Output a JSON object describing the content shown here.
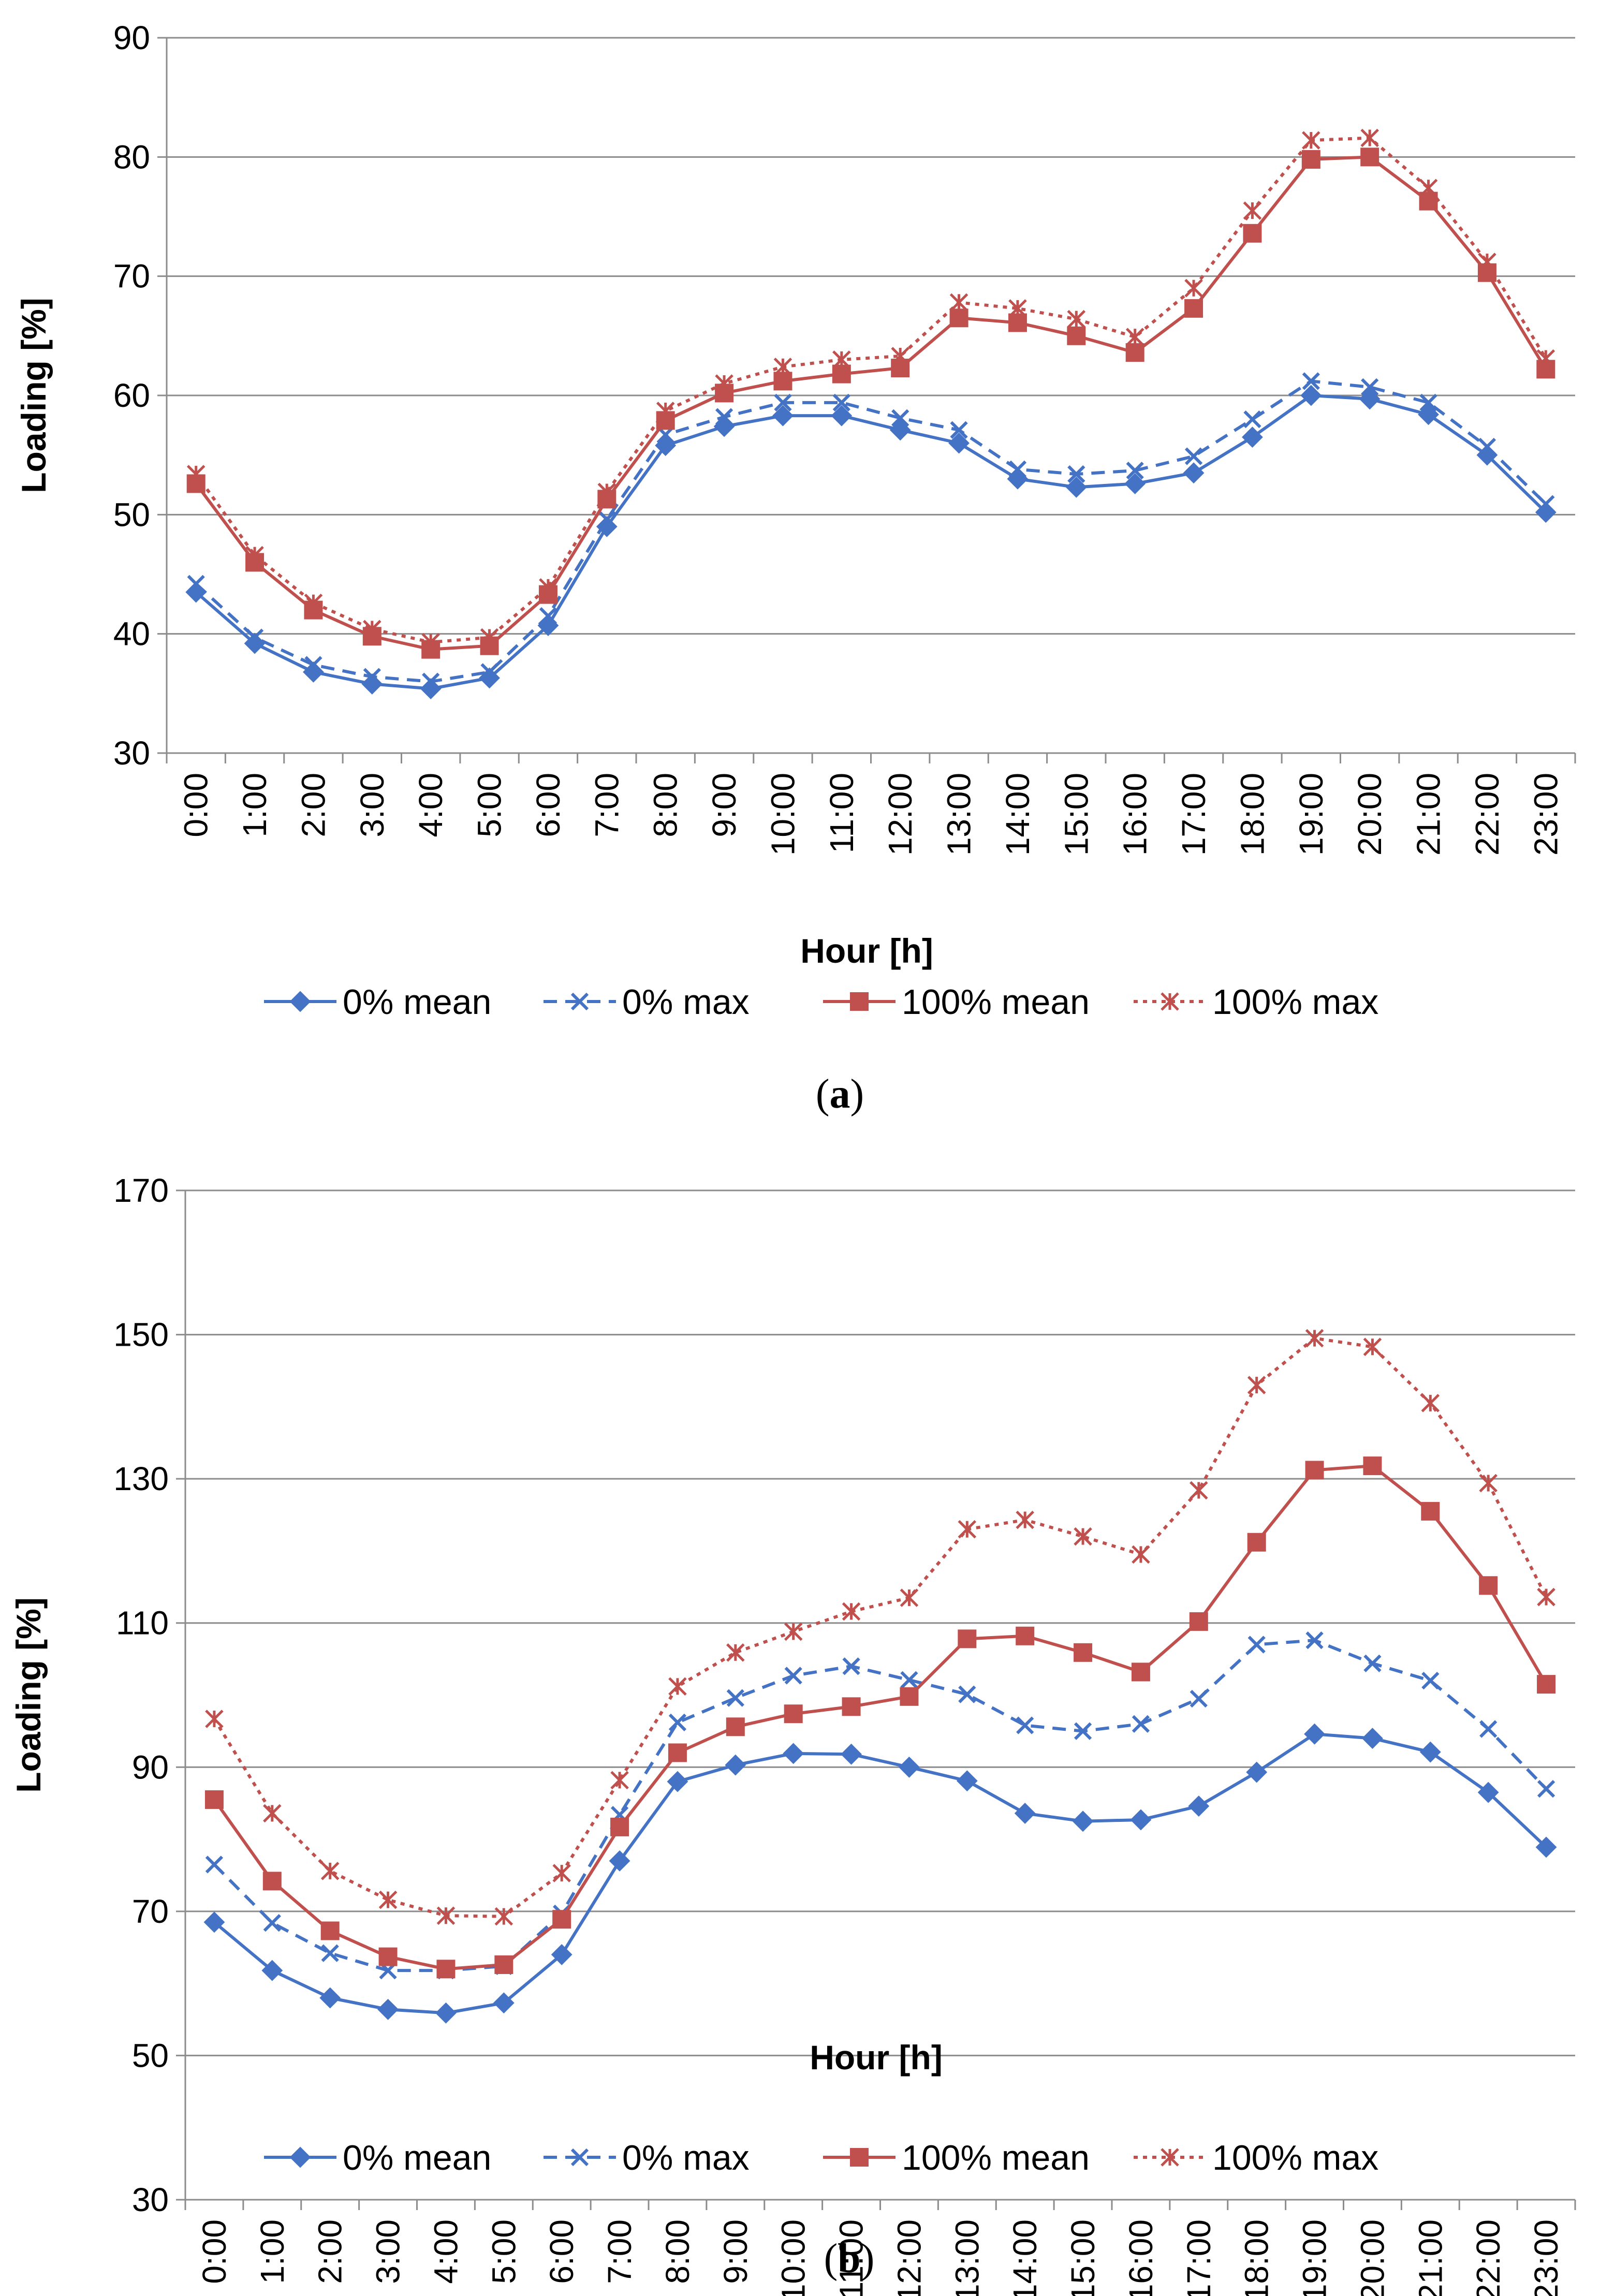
{
  "chart_data": [
    {
      "type": "line",
      "panel": "a",
      "caption_open": "(",
      "caption_letter": "a",
      "caption_close": ")",
      "xlabel": "Hour [h]",
      "ylabel": "Loading [%]",
      "ylim": [
        30,
        90
      ],
      "yticks": [
        30,
        40,
        50,
        60,
        70,
        80,
        90
      ],
      "grid": true,
      "legend": "bottom",
      "categories": [
        "0:00",
        "1:00",
        "2:00",
        "3:00",
        "4:00",
        "5:00",
        "6:00",
        "7:00",
        "8:00",
        "9:00",
        "10:00",
        "11:00",
        "12:00",
        "13:00",
        "14:00",
        "15:00",
        "16:00",
        "17:00",
        "18:00",
        "19:00",
        "20:00",
        "21:00",
        "22:00",
        "23:00"
      ],
      "series": [
        {
          "name": "0% mean",
          "color": "#4472C4",
          "marker": "diamond",
          "dash": "solid",
          "values": [
            43.5,
            39.2,
            36.8,
            35.8,
            35.4,
            36.3,
            40.7,
            49.0,
            55.8,
            57.4,
            58.3,
            58.3,
            57.1,
            56.0,
            53.0,
            52.3,
            52.6,
            53.5,
            56.5,
            60.0,
            59.7,
            58.4,
            55.0,
            50.2
          ]
        },
        {
          "name": "0% max",
          "color": "#4472C4",
          "marker": "x",
          "dash": "dashed",
          "values": [
            44.2,
            39.7,
            37.4,
            36.4,
            36.0,
            36.8,
            41.5,
            49.6,
            56.7,
            58.2,
            59.4,
            59.4,
            58.1,
            57.1,
            53.8,
            53.4,
            53.7,
            54.9,
            58.0,
            61.2,
            60.7,
            59.4,
            55.7,
            50.9
          ]
        },
        {
          "name": "100% mean",
          "color": "#C0504D",
          "marker": "square",
          "dash": "solid",
          "values": [
            52.6,
            46.0,
            42.0,
            39.8,
            38.7,
            39.0,
            43.3,
            51.3,
            57.9,
            60.2,
            61.2,
            61.8,
            62.3,
            66.5,
            66.1,
            65.0,
            63.6,
            67.3,
            73.6,
            79.8,
            80.0,
            76.3,
            70.3,
            62.2
          ]
        },
        {
          "name": "100% max",
          "color": "#C0504D",
          "marker": "asterisk",
          "dash": "dotted",
          "values": [
            53.4,
            46.6,
            42.6,
            40.4,
            39.3,
            39.7,
            43.9,
            51.9,
            58.7,
            61.0,
            62.4,
            63.0,
            63.3,
            67.8,
            67.3,
            66.4,
            64.9,
            69.0,
            75.5,
            81.4,
            81.6,
            77.4,
            71.2,
            63.1
          ]
        }
      ]
    },
    {
      "type": "line",
      "panel": "b",
      "caption_open": "(",
      "caption_letter": "b",
      "caption_close": ")",
      "xlabel": "Hour [h]",
      "ylabel": "Loading [%]",
      "ylim": [
        30,
        170
      ],
      "yticks": [
        30,
        50,
        70,
        90,
        110,
        130,
        150,
        170
      ],
      "grid": true,
      "legend": "bottom",
      "categories": [
        "0:00",
        "1:00",
        "2:00",
        "3:00",
        "4:00",
        "5:00",
        "6:00",
        "7:00",
        "8:00",
        "9:00",
        "10:00",
        "11:00",
        "12:00",
        "13:00",
        "14:00",
        "15:00",
        "16:00",
        "17:00",
        "18:00",
        "19:00",
        "20:00",
        "21:00",
        "22:00",
        "23:00"
      ],
      "series": [
        {
          "name": "0% mean",
          "color": "#4472C4",
          "marker": "diamond",
          "dash": "solid",
          "values": [
            68.5,
            61.8,
            58.0,
            56.4,
            55.9,
            57.3,
            64.0,
            77.0,
            88.0,
            90.3,
            91.9,
            91.8,
            90.0,
            88.1,
            83.6,
            82.5,
            82.7,
            84.6,
            89.3,
            94.6,
            94.0,
            92.1,
            86.5,
            78.9
          ]
        },
        {
          "name": "0% max",
          "color": "#4472C4",
          "marker": "x",
          "dash": "dashed",
          "values": [
            76.5,
            68.4,
            64.2,
            61.8,
            61.8,
            62.4,
            69.7,
            83.4,
            96.2,
            99.6,
            102.7,
            104.0,
            102.1,
            100.1,
            95.8,
            95.0,
            96.0,
            99.5,
            107.0,
            107.6,
            104.4,
            102.0,
            95.3,
            87.0
          ]
        },
        {
          "name": "100% mean",
          "color": "#C0504D",
          "marker": "square",
          "dash": "solid",
          "values": [
            85.5,
            74.2,
            67.3,
            63.7,
            62.0,
            62.6,
            68.9,
            81.7,
            92.0,
            95.6,
            97.4,
            98.4,
            99.8,
            107.8,
            108.2,
            105.9,
            103.2,
            110.2,
            121.2,
            131.2,
            131.8,
            125.5,
            115.2,
            101.5
          ]
        },
        {
          "name": "100% max",
          "color": "#C0504D",
          "marker": "asterisk",
          "dash": "dotted",
          "values": [
            96.7,
            83.6,
            75.6,
            71.6,
            69.4,
            69.3,
            75.3,
            88.2,
            101.2,
            105.9,
            108.8,
            111.6,
            113.5,
            123.0,
            124.3,
            122.0,
            119.5,
            128.4,
            143.0,
            149.5,
            148.3,
            140.5,
            129.4,
            113.6
          ]
        }
      ]
    }
  ]
}
